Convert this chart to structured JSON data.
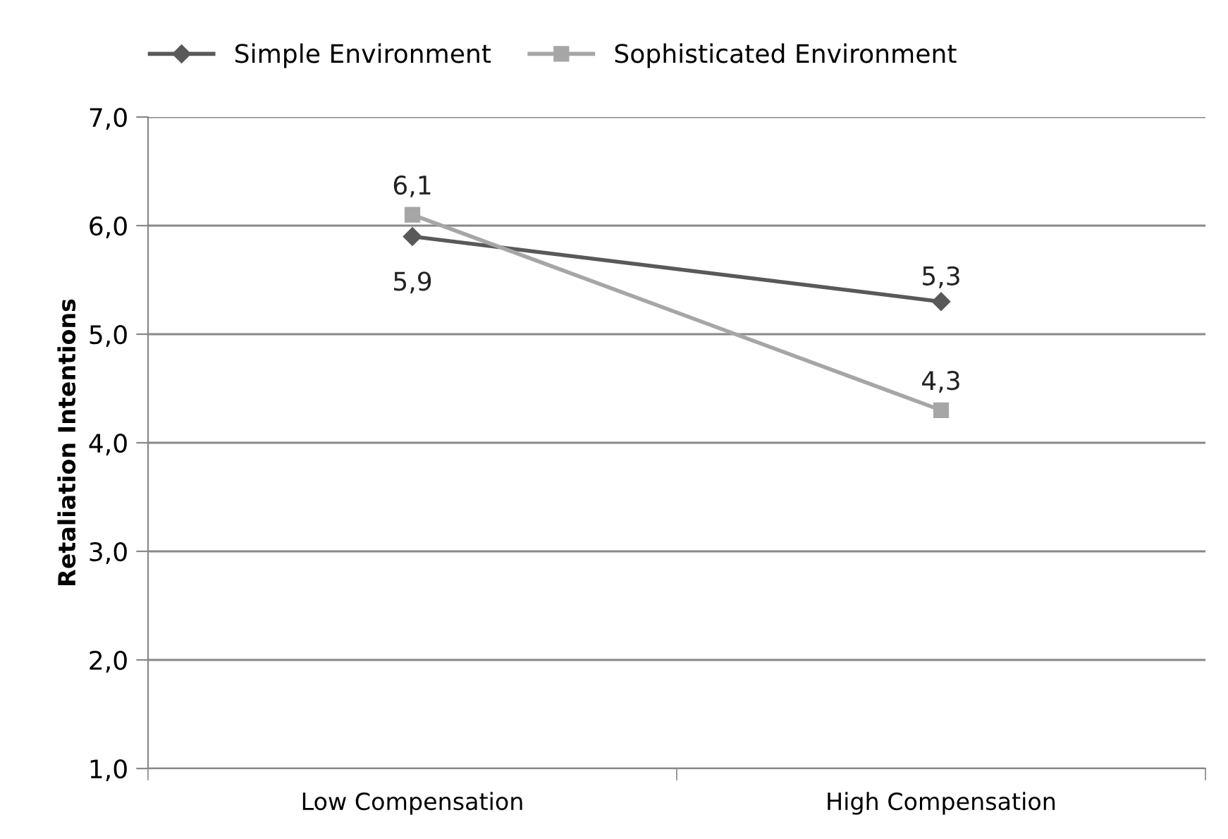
{
  "chart_data": {
    "type": "line",
    "ylabel": "Retaliation Intentions",
    "categories": [
      "Low Compensation",
      "High Compensation"
    ],
    "series": [
      {
        "name": "Simple Environment",
        "color": "#595959",
        "marker": "diamond",
        "values": [
          5.9,
          5.3
        ],
        "value_labels": [
          "5,9",
          "5,3"
        ]
      },
      {
        "name": "Sophisticated Environment",
        "color": "#a6a6a6",
        "marker": "square",
        "values": [
          6.1,
          4.3
        ],
        "value_labels": [
          "6,1",
          "4,3"
        ]
      }
    ],
    "ylim": [
      1,
      7
    ],
    "yticks": [
      {
        "value": 1,
        "label": "1,0"
      },
      {
        "value": 2,
        "label": "2,0"
      },
      {
        "value": 3,
        "label": "3,0"
      },
      {
        "value": 4,
        "label": "4,0"
      },
      {
        "value": 5,
        "label": "5,0"
      },
      {
        "value": 6,
        "label": "6,0"
      },
      {
        "value": 7,
        "label": "7,0"
      }
    ],
    "grid": "y",
    "legend": "top left"
  }
}
